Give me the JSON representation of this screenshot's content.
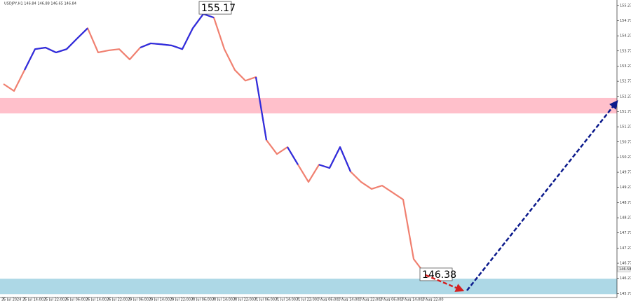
{
  "chart_data": {
    "type": "line",
    "title": "USDJPY,H1 146.84 146.88 146.65 146.84",
    "categories": [
      "25 Jul 2024",
      null,
      "25 Jul 14:00",
      null,
      "25 Jul 22:00",
      null,
      "26 Jul 06:00",
      null,
      "26 Jul 14:00",
      null,
      "26 Jul 22:00",
      null,
      "29 Jul 06:00",
      null,
      "29 Jul 14:00",
      null,
      "29 Jul 22:00",
      null,
      "30 Jul 06:00",
      null,
      "30 Jul 14:00",
      null,
      "30 Jul 22:00",
      null,
      "31 Jul 06:00",
      null,
      "31 Jul 14:00",
      null,
      "31 Jul 22:00",
      null,
      "1 Aug 06:00",
      null,
      "1 Aug 14:00",
      null,
      "1 Aug 22:00",
      null,
      "2 Aug 06:00",
      null,
      "2 Aug 14:00",
      null,
      "2 Aug 22:00"
    ],
    "series": [
      {
        "color": "#f08070",
        "values": [
          152.68,
          152.45,
          153.14,
          153.83,
          153.88,
          153.72,
          153.83,
          154.18,
          154.52,
          153.72,
          153.79,
          153.83,
          153.49,
          153.88,
          154.02,
          153.99,
          153.95,
          153.83,
          154.52,
          154.99,
          154.87,
          153.83,
          153.14,
          152.79,
          152.91,
          150.83,
          150.37,
          150.6,
          150.02,
          149.45,
          150.02,
          149.91,
          150.6,
          149.79,
          149.45,
          149.22,
          149.33,
          149.1,
          148.87,
          146.91,
          146.45
        ]
      },
      {
        "color": "#2d2de0",
        "values": [
          null,
          null,
          153.14,
          153.83,
          153.88,
          153.72,
          153.83,
          154.18,
          154.52,
          null,
          null,
          null,
          null,
          153.88,
          154.02,
          153.99,
          153.95,
          153.83,
          154.52,
          154.99,
          154.87,
          null,
          null,
          null,
          152.91,
          150.83,
          null,
          150.6,
          150.02,
          null,
          150.02,
          149.91,
          150.6,
          149.79,
          null,
          null,
          null,
          null,
          null,
          null,
          null
        ]
      }
    ],
    "ylim": [
      145.64,
      155.45
    ],
    "yticks": [
      145.77,
      146.27,
      146.77,
      147.27,
      147.77,
      148.27,
      148.77,
      149.27,
      149.77,
      150.27,
      150.77,
      151.27,
      151.77,
      152.27,
      152.77,
      153.27,
      153.77,
      154.27,
      154.77,
      155.27
    ],
    "zones": [
      {
        "from": 152.22,
        "to": 151.71,
        "color": "#ffc0cb"
      },
      {
        "from": 146.26,
        "to": 145.75,
        "color": "#add8e6"
      }
    ],
    "annotations": [
      {
        "label": "155.17",
        "value": 155.17,
        "index": 19
      },
      {
        "label": "146.38",
        "value": 146.38,
        "index": 40
      }
    ],
    "price_marker": 146.58
  }
}
